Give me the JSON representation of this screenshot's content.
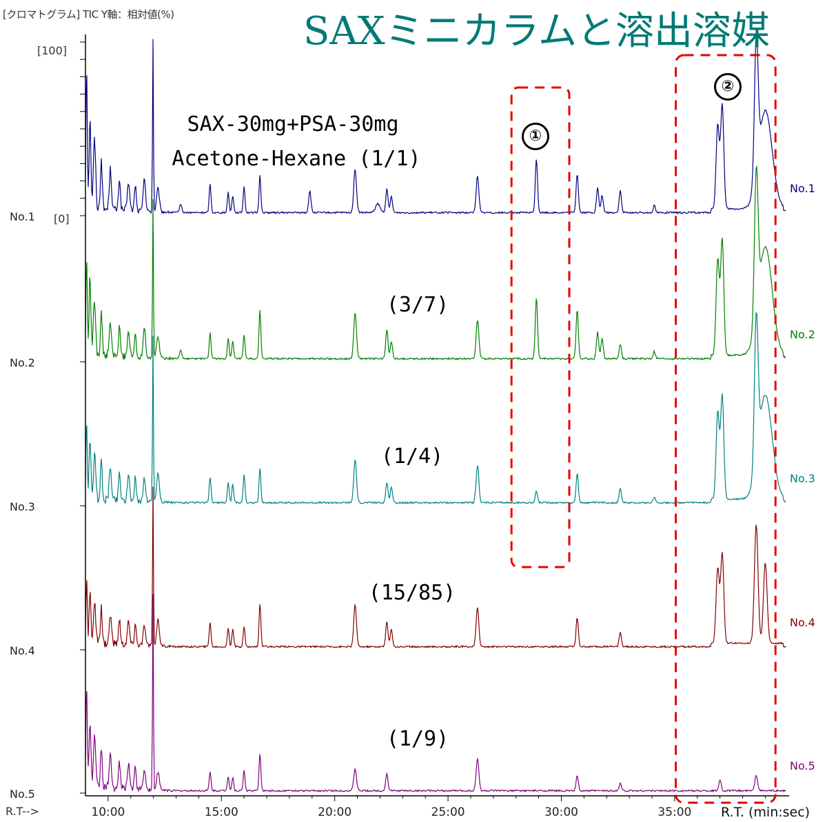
{
  "header_text": "[クロマトグラム]  TIC   Y軸：相対値(%)",
  "title": "SAXミニカラムと溶出溶媒",
  "y_top_label": "[100]",
  "y_zero_label": "[0]",
  "rt_arrow_label": "R.T-->",
  "rt_axis_label": "R.T. (min:sec)",
  "annotations": {
    "sample_line1": "SAX-30mg+PSA-30mg",
    "sample_line2": "Acetone-Hexane (1/1)",
    "ratio_2": "(3/7)",
    "ratio_3": "(1/4)",
    "ratio_4": "(15/85)",
    "ratio_5": "(1/9)",
    "region1": "①",
    "region2": "②"
  },
  "colors": {
    "title": "#007a77",
    "highlight_box": "#e60000",
    "axis": "#000000"
  },
  "chart_data": {
    "type": "line",
    "x_unit": "min",
    "x_ticks": [
      "10:00",
      "15:00",
      "20:00",
      "25:00",
      "30:00",
      "35:00"
    ],
    "x_tick_values": [
      10,
      15,
      20,
      25,
      30,
      35
    ],
    "xlim": [
      9,
      39.9
    ],
    "ylim": [
      0,
      100
    ],
    "y_scale": "relative (%)",
    "series": [
      {
        "name": "No.1",
        "color": "#000080",
        "baseline": 1.5,
        "peaks": [
          [
            9.05,
            100,
            0.03
          ],
          [
            9.2,
            62,
            0.04
          ],
          [
            9.4,
            48,
            0.05
          ],
          [
            9.7,
            35,
            0.04
          ],
          [
            10.1,
            28,
            0.05
          ],
          [
            10.5,
            22,
            0.04
          ],
          [
            10.9,
            20,
            0.05
          ],
          [
            11.2,
            18,
            0.04
          ],
          [
            11.6,
            24,
            0.05
          ],
          [
            11.98,
            120,
            0.02
          ],
          [
            12.2,
            16,
            0.06
          ],
          [
            13.2,
            6,
            0.05
          ],
          [
            14.5,
            20,
            0.04
          ],
          [
            15.3,
            14,
            0.04
          ],
          [
            15.5,
            12,
            0.04
          ],
          [
            16.0,
            18,
            0.04
          ],
          [
            16.7,
            26,
            0.04
          ],
          [
            18.9,
            15,
            0.05
          ],
          [
            20.9,
            30,
            0.06
          ],
          [
            21.9,
            6,
            0.1
          ],
          [
            22.3,
            16,
            0.05
          ],
          [
            22.5,
            11,
            0.05
          ],
          [
            26.3,
            25,
            0.06
          ],
          [
            28.9,
            37,
            0.05
          ],
          [
            30.7,
            27,
            0.05
          ],
          [
            31.6,
            17,
            0.05
          ],
          [
            31.8,
            12,
            0.05
          ],
          [
            32.6,
            15,
            0.05
          ],
          [
            34.1,
            5,
            0.05
          ],
          [
            36.9,
            58,
            0.07
          ],
          [
            37.1,
            72,
            0.07
          ],
          [
            38.6,
            95,
            0.08
          ],
          [
            39.0,
            68,
            0.3
          ]
        ]
      },
      {
        "name": "No.2",
        "color": "#008000",
        "baseline": 1.5,
        "peaks": [
          [
            9.05,
            68,
            0.03
          ],
          [
            9.2,
            55,
            0.04
          ],
          [
            9.4,
            38,
            0.05
          ],
          [
            9.7,
            30,
            0.04
          ],
          [
            10.1,
            22,
            0.05
          ],
          [
            10.5,
            20,
            0.04
          ],
          [
            10.9,
            18,
            0.05
          ],
          [
            11.2,
            16,
            0.04
          ],
          [
            11.6,
            22,
            0.05
          ],
          [
            11.98,
            110,
            0.02
          ],
          [
            12.2,
            15,
            0.06
          ],
          [
            13.2,
            6,
            0.05
          ],
          [
            14.5,
            18,
            0.04
          ],
          [
            15.3,
            14,
            0.04
          ],
          [
            15.5,
            12,
            0.04
          ],
          [
            16.0,
            16,
            0.04
          ],
          [
            16.7,
            34,
            0.04
          ],
          [
            20.9,
            32,
            0.06
          ],
          [
            22.3,
            20,
            0.05
          ],
          [
            22.5,
            12,
            0.05
          ],
          [
            26.3,
            27,
            0.06
          ],
          [
            28.9,
            42,
            0.05
          ],
          [
            30.7,
            34,
            0.05
          ],
          [
            31.6,
            19,
            0.05
          ],
          [
            31.8,
            14,
            0.05
          ],
          [
            32.6,
            10,
            0.05
          ],
          [
            34.1,
            5,
            0.05
          ],
          [
            36.9,
            66,
            0.07
          ],
          [
            37.1,
            80,
            0.07
          ],
          [
            38.6,
            100,
            0.08
          ],
          [
            39.0,
            75,
            0.3
          ]
        ]
      },
      {
        "name": "No.3",
        "color": "#008080",
        "baseline": 1.5,
        "peaks": [
          [
            9.05,
            52,
            0.03
          ],
          [
            9.2,
            40,
            0.04
          ],
          [
            9.4,
            30,
            0.05
          ],
          [
            9.7,
            26,
            0.04
          ],
          [
            10.1,
            22,
            0.05
          ],
          [
            10.5,
            20,
            0.04
          ],
          [
            10.9,
            18,
            0.05
          ],
          [
            11.2,
            16,
            0.04
          ],
          [
            11.6,
            16,
            0.05
          ],
          [
            11.98,
            115,
            0.02
          ],
          [
            12.2,
            20,
            0.06
          ],
          [
            14.5,
            18,
            0.04
          ],
          [
            15.3,
            14,
            0.04
          ],
          [
            15.5,
            13,
            0.04
          ],
          [
            16.0,
            20,
            0.04
          ],
          [
            16.7,
            24,
            0.04
          ],
          [
            20.9,
            30,
            0.06
          ],
          [
            22.3,
            14,
            0.05
          ],
          [
            22.5,
            11,
            0.05
          ],
          [
            26.3,
            26,
            0.06
          ],
          [
            28.9,
            8,
            0.05
          ],
          [
            30.7,
            20,
            0.05
          ],
          [
            32.6,
            10,
            0.05
          ],
          [
            34.1,
            4,
            0.05
          ],
          [
            36.9,
            60,
            0.07
          ],
          [
            37.1,
            72,
            0.07
          ],
          [
            38.6,
            100,
            0.08
          ],
          [
            39.0,
            72,
            0.3
          ]
        ]
      },
      {
        "name": "No.4",
        "color": "#800000",
        "baseline": 1.5,
        "peaks": [
          [
            9.05,
            42,
            0.03
          ],
          [
            9.2,
            34,
            0.04
          ],
          [
            9.4,
            28,
            0.05
          ],
          [
            9.7,
            24,
            0.04
          ],
          [
            10.1,
            20,
            0.05
          ],
          [
            10.5,
            18,
            0.04
          ],
          [
            10.9,
            16,
            0.05
          ],
          [
            11.2,
            15,
            0.04
          ],
          [
            11.6,
            14,
            0.05
          ],
          [
            11.98,
            110,
            0.02
          ],
          [
            12.2,
            18,
            0.06
          ],
          [
            14.5,
            17,
            0.04
          ],
          [
            15.3,
            13,
            0.04
          ],
          [
            15.5,
            12,
            0.04
          ],
          [
            16.0,
            14,
            0.04
          ],
          [
            16.7,
            30,
            0.04
          ],
          [
            20.9,
            29,
            0.06
          ],
          [
            22.3,
            17,
            0.05
          ],
          [
            22.5,
            12,
            0.05
          ],
          [
            26.3,
            27,
            0.06
          ],
          [
            30.7,
            20,
            0.05
          ],
          [
            32.6,
            10,
            0.05
          ],
          [
            36.9,
            52,
            0.07
          ],
          [
            37.1,
            62,
            0.07
          ],
          [
            38.6,
            82,
            0.08
          ],
          [
            39.0,
            56,
            0.08
          ]
        ]
      },
      {
        "name": "No.5",
        "color": "#800080",
        "baseline": 1.0,
        "peaks": [
          [
            9.05,
            72,
            0.03
          ],
          [
            9.2,
            46,
            0.04
          ],
          [
            9.4,
            34,
            0.05
          ],
          [
            9.7,
            28,
            0.04
          ],
          [
            10.1,
            22,
            0.05
          ],
          [
            10.5,
            18,
            0.04
          ],
          [
            10.9,
            18,
            0.05
          ],
          [
            11.2,
            15,
            0.04
          ],
          [
            11.6,
            14,
            0.05
          ],
          [
            11.98,
            135,
            0.02
          ],
          [
            12.2,
            12,
            0.06
          ],
          [
            14.5,
            13,
            0.04
          ],
          [
            15.3,
            10,
            0.04
          ],
          [
            15.5,
            9,
            0.04
          ],
          [
            16.0,
            14,
            0.04
          ],
          [
            16.7,
            26,
            0.04
          ],
          [
            20.9,
            15,
            0.06
          ],
          [
            22.3,
            12,
            0.05
          ],
          [
            26.3,
            22,
            0.06
          ],
          [
            30.7,
            10,
            0.05
          ],
          [
            32.6,
            5,
            0.05
          ],
          [
            37.0,
            8,
            0.05
          ],
          [
            38.6,
            11,
            0.06
          ]
        ]
      }
    ]
  }
}
